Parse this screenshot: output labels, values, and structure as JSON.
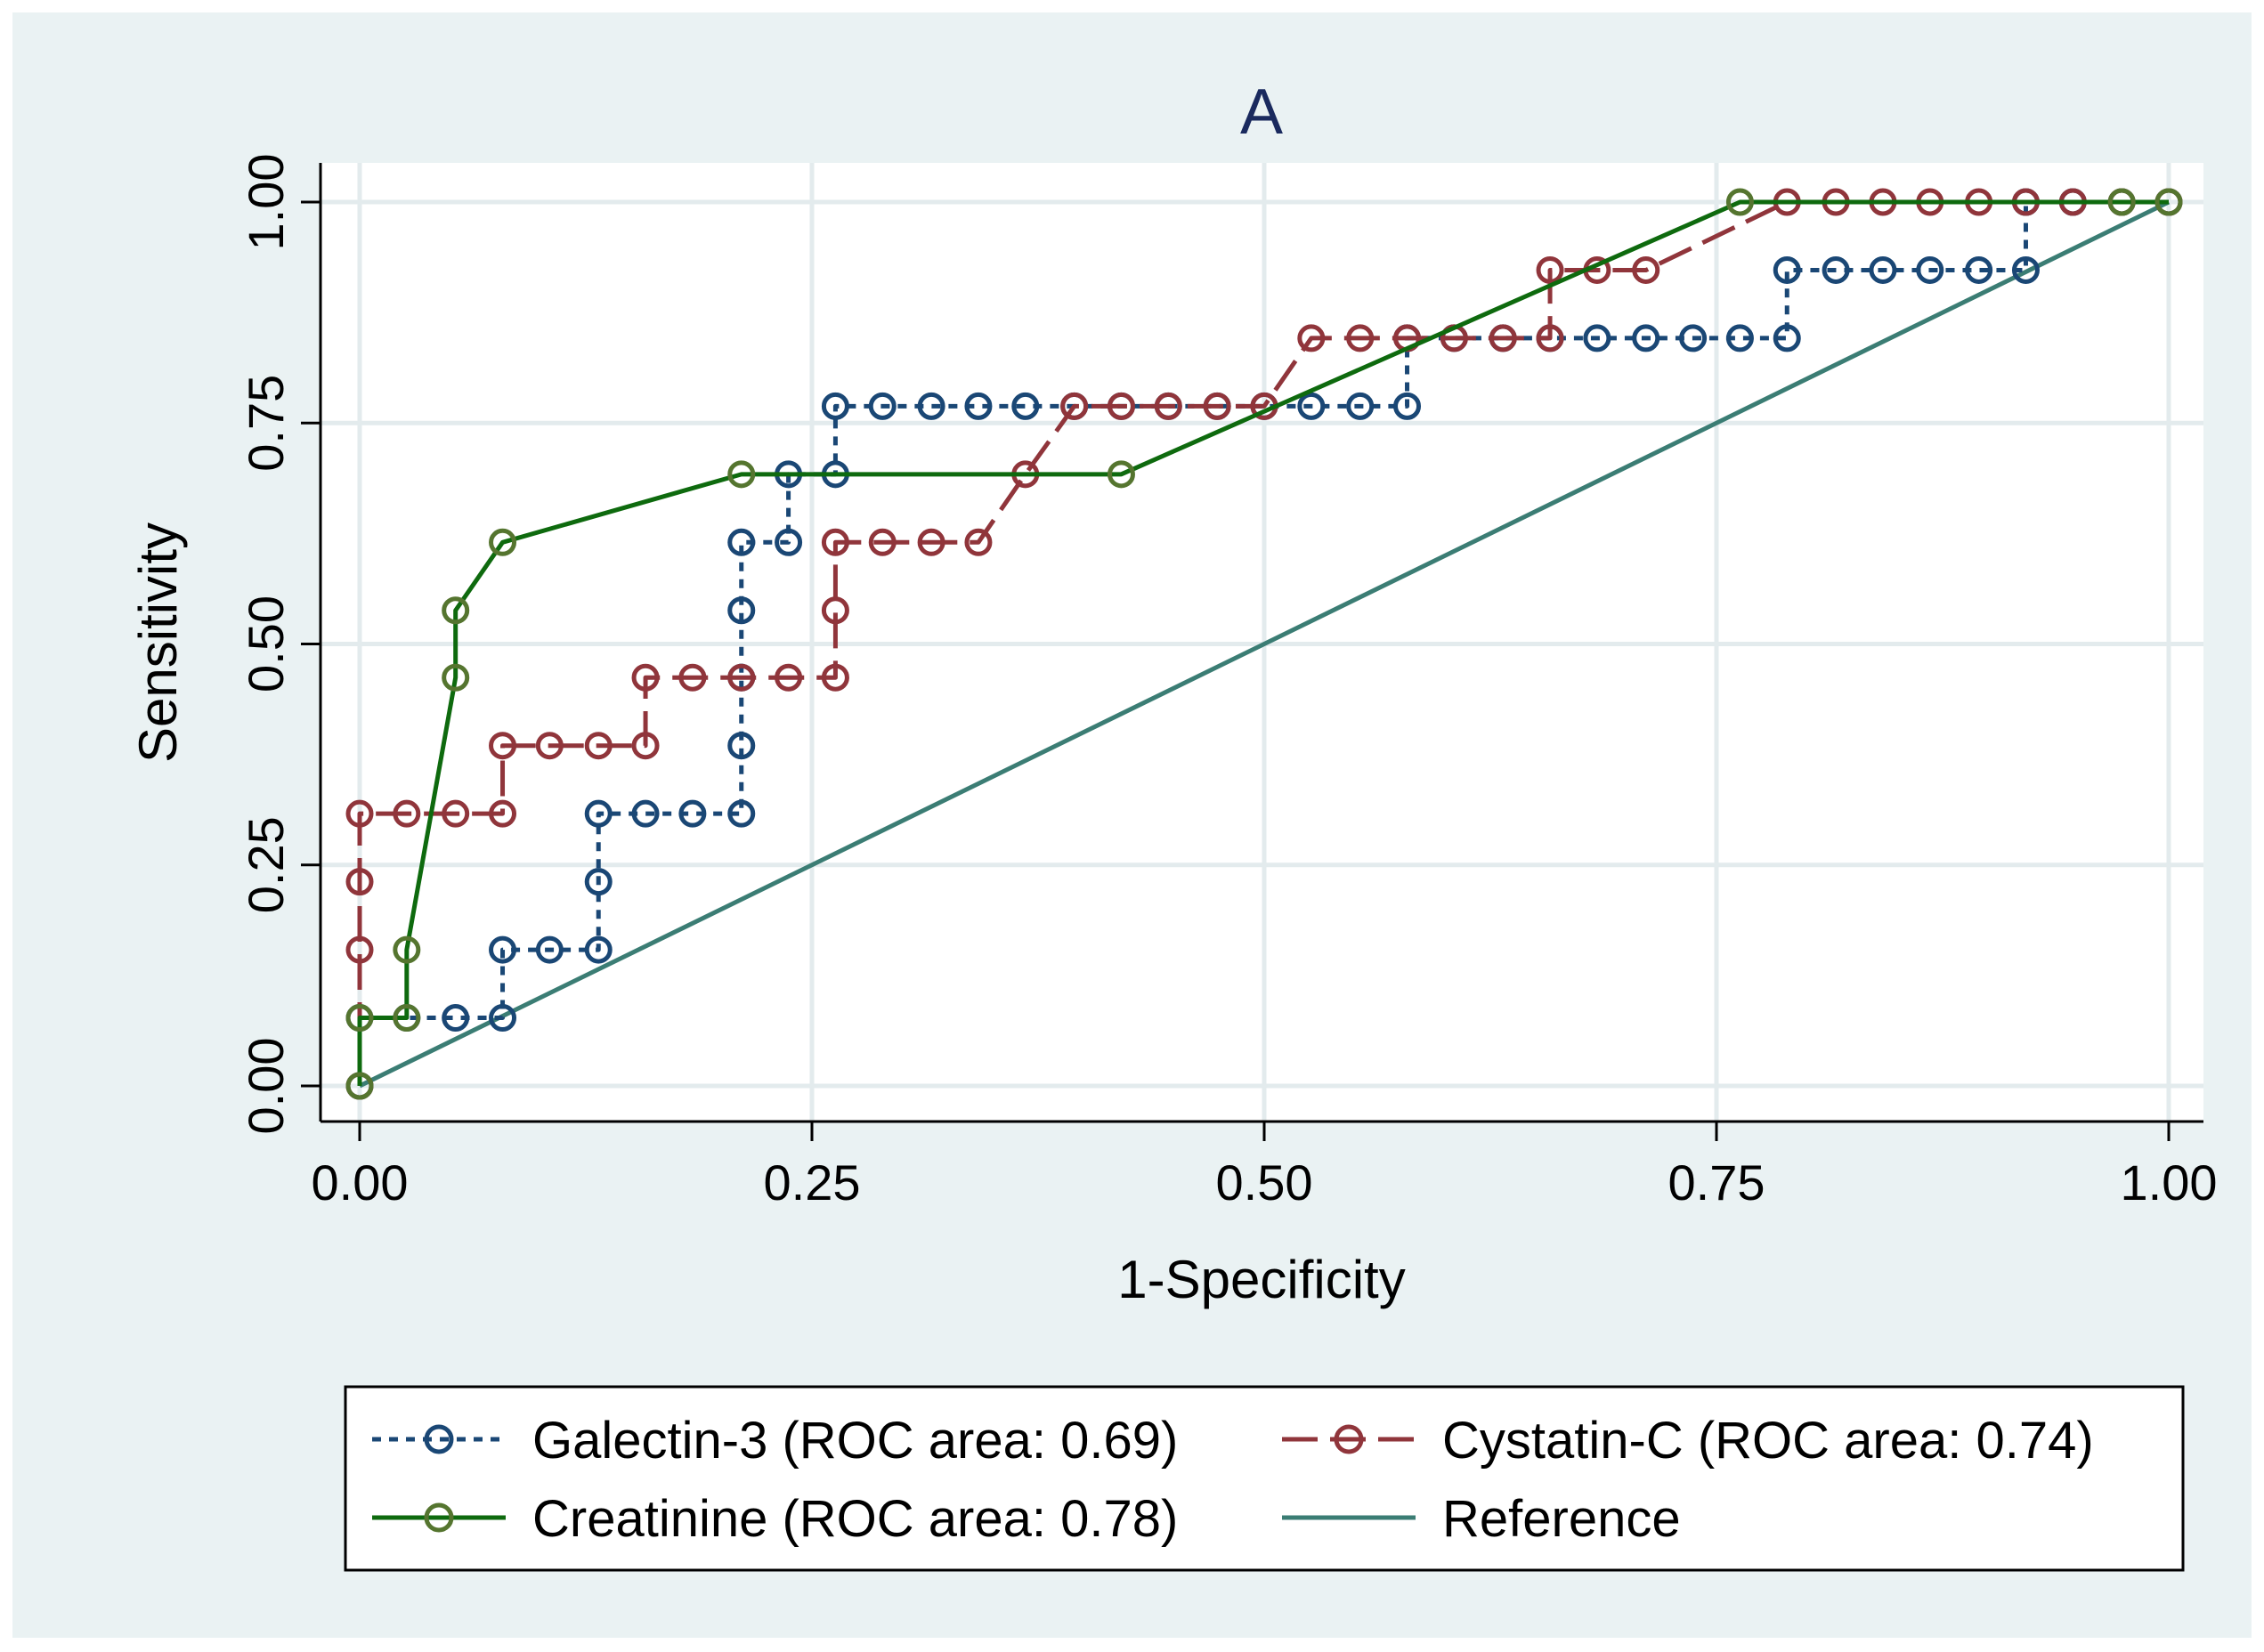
{
  "chart_data": {
    "type": "line",
    "title": "A",
    "xlabel": "1-Specificity",
    "ylabel": "Sensitivity",
    "xlim": [
      0,
      1
    ],
    "ylim": [
      0,
      1
    ],
    "xticks": [
      "0.00",
      "0.25",
      "0.50",
      "0.75",
      "1.00"
    ],
    "yticks": [
      "0.00",
      "0.25",
      "0.50",
      "0.75",
      "1.00"
    ],
    "grid": true,
    "legend_position": "bottom",
    "series": [
      {
        "name": "Galectin-3 (ROC area: 0.69)",
        "color": "#1a4775",
        "style": "dotted",
        "markers": true,
        "x": [
          0,
          0,
          0.026,
          0.053,
          0.079,
          0.079,
          0.105,
          0.132,
          0.132,
          0.132,
          0.158,
          0.184,
          0.211,
          0.211,
          0.211,
          0.211,
          0.211,
          0.237,
          0.237,
          0.263,
          0.263,
          0.289,
          0.316,
          0.342,
          0.368,
          0.395,
          0.421,
          0.447,
          0.474,
          0.5,
          0.526,
          0.553,
          0.579,
          0.579,
          0.605,
          0.632,
          0.658,
          0.684,
          0.711,
          0.737,
          0.763,
          0.789,
          0.789,
          0.816,
          0.842,
          0.868,
          0.895,
          0.921,
          0.921,
          0.947,
          0.974,
          1
        ],
        "y": [
          0,
          0.077,
          0.077,
          0.077,
          0.077,
          0.154,
          0.154,
          0.154,
          0.231,
          0.308,
          0.308,
          0.308,
          0.308,
          0.385,
          0.462,
          0.538,
          0.615,
          0.615,
          0.692,
          0.692,
          0.769,
          0.769,
          0.769,
          0.769,
          0.769,
          0.769,
          0.769,
          0.769,
          0.769,
          0.769,
          0.769,
          0.769,
          0.769,
          0.846,
          0.846,
          0.846,
          0.846,
          0.846,
          0.846,
          0.846,
          0.846,
          0.846,
          0.923,
          0.923,
          0.923,
          0.923,
          0.923,
          0.923,
          1,
          1,
          1,
          1
        ]
      },
      {
        "name": "Cystatin-C (ROC area: 0.74)",
        "color": "#90353b",
        "style": "dashed",
        "markers": true,
        "x": [
          0,
          0,
          0,
          0,
          0.026,
          0.053,
          0.079,
          0.079,
          0.105,
          0.132,
          0.158,
          0.158,
          0.184,
          0.211,
          0.237,
          0.263,
          0.263,
          0.263,
          0.289,
          0.316,
          0.342,
          0.368,
          0.395,
          0.421,
          0.447,
          0.474,
          0.5,
          0.526,
          0.553,
          0.579,
          0.605,
          0.632,
          0.658,
          0.658,
          0.684,
          0.711,
          0.789,
          0.816,
          0.842,
          0.868,
          0.895,
          0.921,
          0.947,
          0.974,
          1
        ],
        "y": [
          0,
          0.154,
          0.231,
          0.308,
          0.308,
          0.308,
          0.308,
          0.385,
          0.385,
          0.385,
          0.385,
          0.462,
          0.462,
          0.462,
          0.462,
          0.462,
          0.538,
          0.615,
          0.615,
          0.615,
          0.615,
          0.692,
          0.769,
          0.769,
          0.769,
          0.769,
          0.769,
          0.846,
          0.846,
          0.846,
          0.846,
          0.846,
          0.846,
          0.923,
          0.923,
          0.923,
          1,
          1,
          1,
          1,
          1,
          1,
          1,
          1,
          1
        ]
      },
      {
        "name": "Creatinine (ROC area: 0.78)",
        "color": "#0e6a0e",
        "marker_color": "#55752f",
        "style": "solid",
        "markers": true,
        "x": [
          0,
          0,
          0.026,
          0.026,
          0.053,
          0.053,
          0.079,
          0.211,
          0.421,
          0.763,
          0.974,
          1
        ],
        "y": [
          0,
          0.077,
          0.077,
          0.154,
          0.462,
          0.538,
          0.615,
          0.692,
          0.692,
          1,
          1,
          1
        ]
      },
      {
        "name": "Reference",
        "color": "#3b7d74",
        "style": "solid",
        "markers": false,
        "x": [
          0,
          1
        ],
        "y": [
          0,
          1
        ]
      }
    ]
  }
}
